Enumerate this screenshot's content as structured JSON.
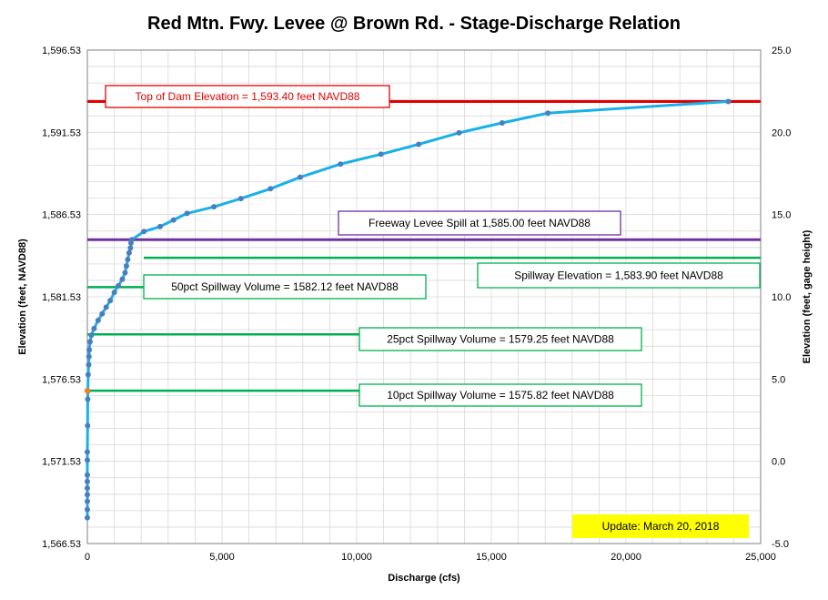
{
  "chart_data": {
    "type": "line",
    "title": "Red Mtn. Fwy. Levee @ Brown Rd. - Stage-Discharge Relation",
    "xlabel": "Discharge  (cfs)",
    "ylabel": "Elevation  (feet, NAVD88)",
    "y2label": "Elevation  (feet, gage height)",
    "xlim": [
      0,
      25000
    ],
    "ylim": [
      1566.53,
      1596.53
    ],
    "y2lim": [
      -5.0,
      25.0
    ],
    "x_ticks": [
      "0",
      "5,000",
      "10,000",
      "15,000",
      "20,000",
      "25,000"
    ],
    "y_ticks": [
      "1,566.53",
      "1,571.53",
      "1,576.53",
      "1,581.53",
      "1,586.53",
      "1,591.53",
      "1,596.53"
    ],
    "y2_ticks": [
      "-5.0",
      "0.0",
      "5.0",
      "10.0",
      "15.0",
      "20.0",
      "25.0"
    ],
    "grid": true,
    "series": [
      {
        "x": [
          0,
          0,
          0,
          0,
          0,
          0,
          0,
          0,
          0,
          10,
          15,
          20,
          30,
          50,
          60,
          70,
          100,
          150,
          250,
          400,
          550,
          700,
          850,
          1000,
          1150,
          1300,
          1400,
          1450,
          1500,
          1550,
          1600,
          1620,
          1650,
          2100,
          2700,
          3200,
          3700,
          4700,
          5700,
          6800,
          7900,
          9400,
          10900,
          12300,
          13800,
          15400,
          17100,
          23800
        ],
        "y": [
          1568.1,
          1568.6,
          1569.1,
          1569.5,
          1569.9,
          1570.3,
          1570.7,
          1571.6,
          1572.1,
          1573.7,
          1575.3,
          1575.8,
          1576.8,
          1577.4,
          1577.9,
          1578.3,
          1578.8,
          1579.2,
          1579.6,
          1580.1,
          1580.5,
          1580.9,
          1581.3,
          1581.8,
          1582.2,
          1582.6,
          1583.0,
          1583.4,
          1583.8,
          1584.2,
          1584.5,
          1584.8,
          1585.0,
          1585.5,
          1585.8,
          1586.2,
          1586.6,
          1587.0,
          1587.5,
          1588.1,
          1588.8,
          1589.6,
          1590.2,
          1590.8,
          1591.5,
          1592.1,
          1592.7,
          1593.4
        ]
      }
    ],
    "highlight_point": {
      "x": 0,
      "y": 1575.82,
      "color": "#f08020"
    },
    "reference_lines": [
      {
        "y": 1593.4,
        "color": "#e00000",
        "label": "Top of Dam Elevation = 1,593.40  feet NAVD88"
      },
      {
        "y": 1585.0,
        "color": "#7030a0",
        "label": "Freeway Levee Spill at 1,585.00  feet NAVD88"
      },
      {
        "y": 1583.9,
        "color": "#00b050",
        "label": "Spillway Elevation = 1,583.90  feet NAVD88"
      },
      {
        "y": 1582.12,
        "color": "#00b050",
        "label": "50pct Spillway Volume = 1582.12  feet NAVD88"
      },
      {
        "y": 1579.25,
        "color": "#00b050",
        "label": "25pct Spillway Volume = 1579.25  feet NAVD88"
      },
      {
        "y": 1575.82,
        "color": "#00b050",
        "label": "10pct Spillway Volume = 1575.82  feet NAVD88"
      }
    ],
    "update_label": "Update: March 20, 2018",
    "colors": {
      "curve": "#1ab0e8",
      "marker": "#4a7ebf",
      "grid": "#d8d8d8",
      "update_bg": "#ffff00"
    }
  }
}
